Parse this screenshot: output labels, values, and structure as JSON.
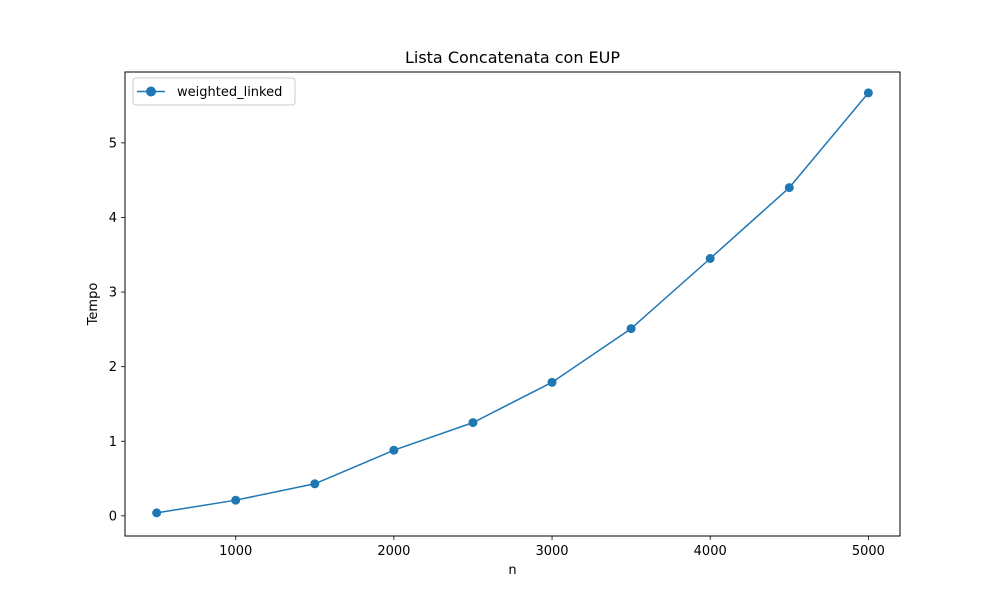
{
  "chart_data": {
    "type": "line",
    "title": "Lista Concatenata con EUP",
    "xlabel": "n",
    "ylabel": "Tempo",
    "xlim": [
      300,
      5200
    ],
    "ylim": [
      -0.27,
      5.95
    ],
    "xticks": [
      1000,
      2000,
      3000,
      4000,
      5000
    ],
    "yticks": [
      0,
      1,
      2,
      3,
      4,
      5
    ],
    "grid": false,
    "legend": "upper-left",
    "series": [
      {
        "name": "weighted_linked",
        "color": "#1f77b4",
        "marker": "circle",
        "x": [
          500,
          1000,
          1500,
          2000,
          2500,
          3000,
          3500,
          4000,
          4500,
          5000
        ],
        "y": [
          0.04,
          0.21,
          0.43,
          0.88,
          1.25,
          1.79,
          2.51,
          3.45,
          4.4,
          5.67
        ]
      }
    ]
  }
}
